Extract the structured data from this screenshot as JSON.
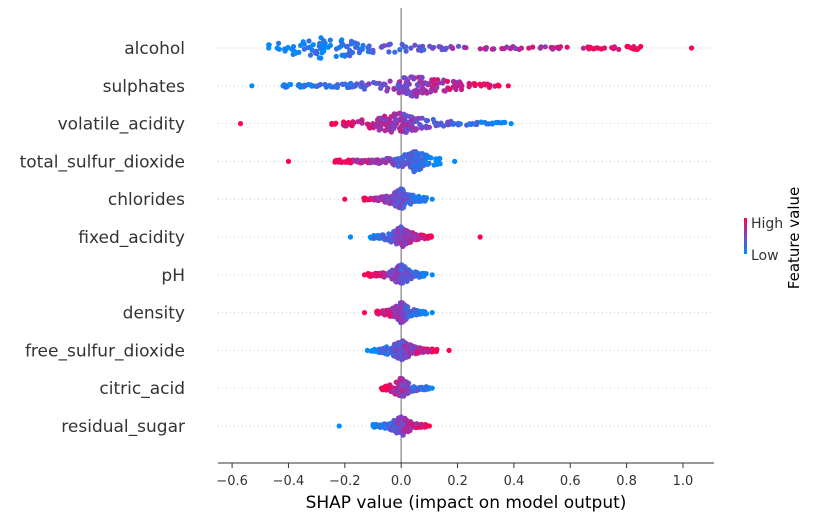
{
  "chart_data": {
    "type": "scatter",
    "subtype": "beeswarm",
    "title": "",
    "xlabel": "SHAP value (impact on model output)",
    "ylabel": "",
    "xlim": [
      -0.65,
      1.11
    ],
    "xticks": [
      -0.6,
      -0.4,
      -0.2,
      0.0,
      0.2,
      0.4,
      0.6,
      0.8,
      1.0
    ],
    "xtick_labels": [
      "−0.6",
      "−0.4",
      "−0.2",
      "0.0",
      "0.2",
      "0.4",
      "0.6",
      "0.8",
      "1.0"
    ],
    "zero_line": 0,
    "colorbar": {
      "label": "Feature value",
      "high": "High",
      "low": "Low",
      "high_color": "#ff0052",
      "low_color": "#008bfb"
    },
    "grid": "dotted horizontal row guides",
    "features": [
      {
        "name": "alcohol",
        "min": -0.47,
        "max": 1.03,
        "dense": [
          -0.44,
          0.85
        ],
        "center": -0.27,
        "corr": 1
      },
      {
        "name": "sulphates",
        "min": -0.53,
        "max": 0.38,
        "dense": [
          -0.42,
          0.36
        ],
        "center": 0.05,
        "corr": 1
      },
      {
        "name": "volatile_acidity",
        "min": -0.57,
        "max": 0.39,
        "dense": [
          -0.26,
          0.37
        ],
        "center": -0.01,
        "corr": -1
      },
      {
        "name": "total_sulfur_dioxide",
        "min": -0.4,
        "max": 0.19,
        "dense": [
          -0.24,
          0.14
        ],
        "center": 0.05,
        "corr": -1
      },
      {
        "name": "chlorides",
        "min": -0.2,
        "max": 0.11,
        "dense": [
          -0.14,
          0.09
        ],
        "center": 0.0,
        "corr": -1
      },
      {
        "name": "fixed_acidity",
        "min": -0.18,
        "max": 0.28,
        "dense": [
          -0.11,
          0.11
        ],
        "center": 0.0,
        "corr": 1
      },
      {
        "name": "pH",
        "min": -0.13,
        "max": 0.11,
        "dense": [
          -0.12,
          0.09
        ],
        "center": 0.0,
        "corr": -1
      },
      {
        "name": "density",
        "min": -0.13,
        "max": 0.11,
        "dense": [
          -0.09,
          0.09
        ],
        "center": 0.0,
        "corr": -1
      },
      {
        "name": "free_sulfur_dioxide",
        "min": -0.12,
        "max": 0.17,
        "dense": [
          -0.11,
          0.13
        ],
        "center": 0.0,
        "corr": 1
      },
      {
        "name": "citric_acid",
        "min": -0.07,
        "max": 0.11,
        "dense": [
          -0.07,
          0.1
        ],
        "center": 0.0,
        "corr": -1
      },
      {
        "name": "residual_sugar",
        "min": -0.22,
        "max": 0.1,
        "dense": [
          -0.1,
          0.09
        ],
        "center": 0.0,
        "corr": 1
      }
    ]
  }
}
